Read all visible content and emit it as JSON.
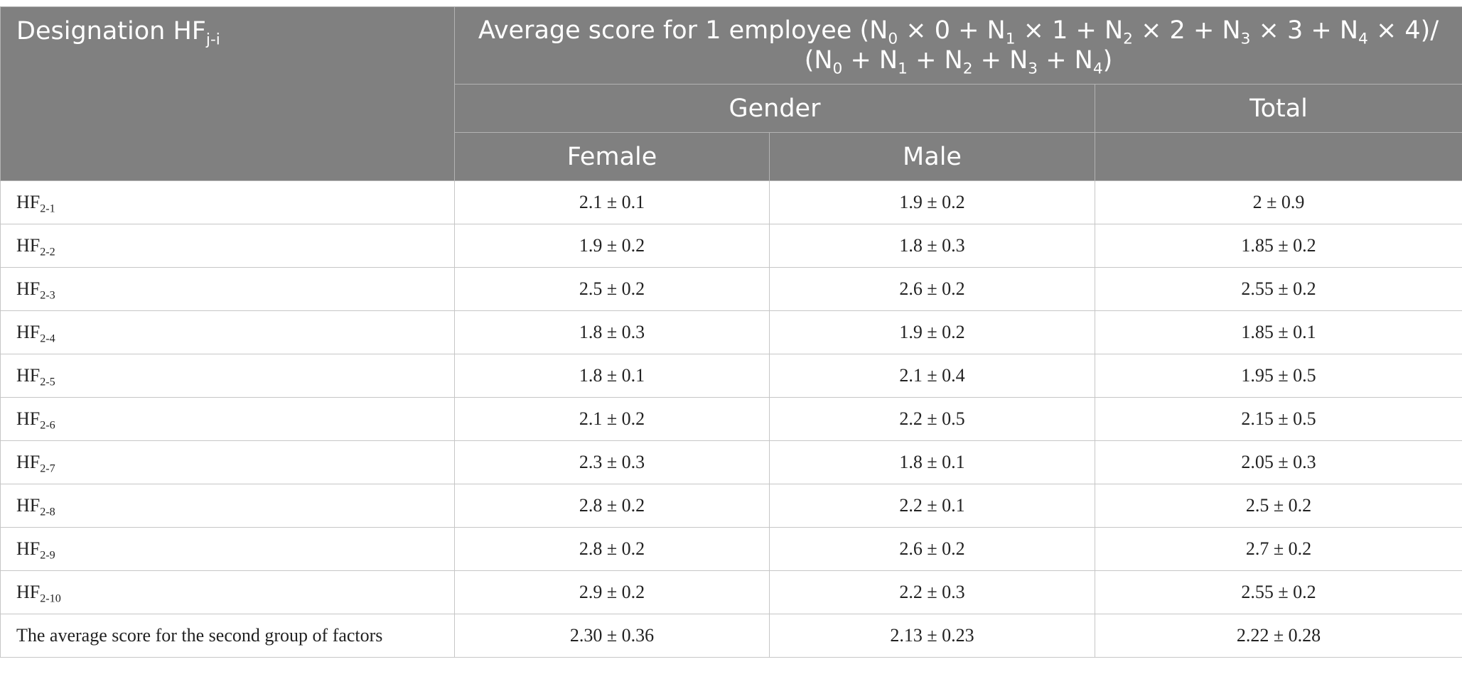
{
  "table": {
    "header": {
      "designation": "Designation HF",
      "designation_sub": "j-i",
      "average_formula": {
        "p1": "Average score for 1 employee (N",
        "s1": "0",
        "p2": " × 0 + N",
        "s2": "1",
        "p3": " × 1 + N",
        "s3": "2",
        "p4": " × 2 + N",
        "s4": "3",
        "p5": " × 3 + N",
        "s5": "4",
        "p6": " × 4)/",
        "p7": "(N",
        "s7": "0",
        "p8": " + N",
        "s8": "1",
        "p9": " + N",
        "s9": "2",
        "p10": " + N",
        "s10": "3",
        "p11": " + N",
        "s11": "4",
        "p12": ")"
      },
      "gender": "Gender",
      "total": "Total",
      "female": "Female",
      "male": "Male"
    },
    "rows": [
      {
        "base": "HF",
        "sub": "2-1",
        "female": "2.1 ± 0.1",
        "male": "1.9 ± 0.2",
        "total": "2 ± 0.9"
      },
      {
        "base": "HF",
        "sub": "2-2",
        "female": "1.9 ± 0.2",
        "male": "1.8 ± 0.3",
        "total": "1.85 ± 0.2"
      },
      {
        "base": "HF",
        "sub": "2-3",
        "female": "2.5 ± 0.2",
        "male": "2.6 ± 0.2",
        "total": "2.55 ± 0.2"
      },
      {
        "base": "HF",
        "sub": "2-4",
        "female": "1.8 ± 0.3",
        "male": "1.9 ± 0.2",
        "total": "1.85 ± 0.1"
      },
      {
        "base": "HF",
        "sub": "2-5",
        "female": "1.8 ± 0.1",
        "male": "2.1 ± 0.4",
        "total": "1.95 ± 0.5"
      },
      {
        "base": "HF",
        "sub": "2-6",
        "female": "2.1 ± 0.2",
        "male": "2.2 ± 0.5",
        "total": "2.15 ± 0.5"
      },
      {
        "base": "HF",
        "sub": "2-7",
        "female": "2.3 ± 0.3",
        "male": "1.8 ± 0.1",
        "total": "2.05 ± 0.3"
      },
      {
        "base": "HF",
        "sub": "2-8",
        "female": "2.8 ± 0.2",
        "male": "2.2 ± 0.1",
        "total": "2.5 ± 0.2"
      },
      {
        "base": "HF",
        "sub": "2-9",
        "female": "2.8 ± 0.2",
        "male": "2.6 ± 0.2",
        "total": "2.7 ± 0.2"
      },
      {
        "base": "HF",
        "sub": "2-10",
        "female": "2.9 ± 0.2",
        "male": "2.2 ± 0.3",
        "total": "2.55 ± 0.2"
      }
    ],
    "summary": {
      "label": "The average score for the second group of factors",
      "female": "2.30 ± 0.36",
      "male": "2.13 ± 0.23",
      "total": "2.22 ± 0.28"
    }
  }
}
